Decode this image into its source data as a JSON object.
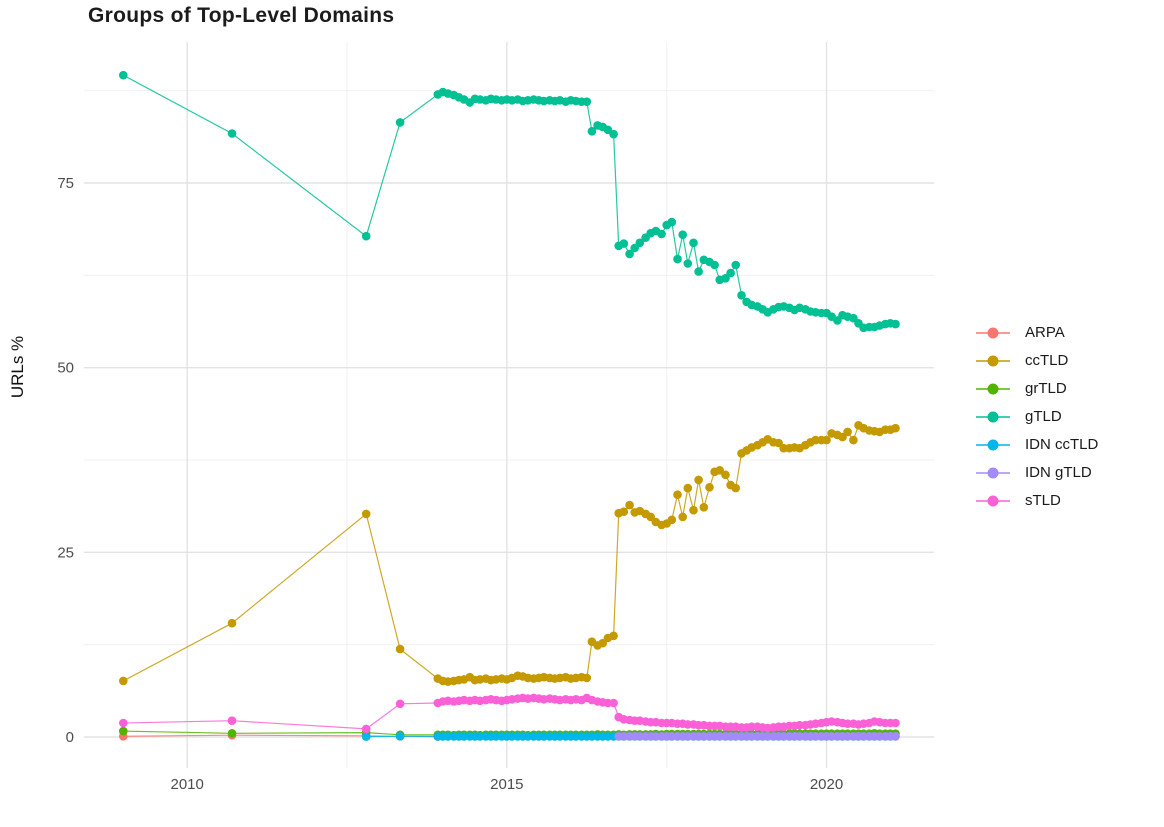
{
  "chart_data": {
    "type": "line-scatter",
    "title": "Groups of Top-Level Domains",
    "xlabel": "",
    "ylabel": "URLs %",
    "legend_position": "right",
    "grid": true,
    "x_ticks": [
      2010,
      2015,
      2020
    ],
    "x_minor": [
      2012.5,
      2017.5
    ],
    "y_ticks": [
      0,
      25,
      50,
      75
    ],
    "y_minor": [
      12.5,
      37.5,
      62.5,
      87.5
    ],
    "xlim": [
      2008.4,
      2021.7
    ],
    "ylim": [
      -4.6,
      94.2
    ],
    "x_dense": [
      2013.92,
      2014.0,
      2014.08,
      2014.17,
      2014.25,
      2014.33,
      2014.42,
      2014.5,
      2014.58,
      2014.67,
      2014.75,
      2014.83,
      2014.92,
      2015.0,
      2015.08,
      2015.17,
      2015.25,
      2015.33,
      2015.42,
      2015.5,
      2015.58,
      2015.67,
      2015.75,
      2015.83,
      2015.92,
      2016.0,
      2016.08,
      2016.17,
      2016.25,
      2016.33,
      2016.42,
      2016.5,
      2016.58,
      2016.67,
      2016.75,
      2016.83,
      2016.92,
      2017.0,
      2017.08,
      2017.17,
      2017.25,
      2017.33,
      2017.42,
      2017.5,
      2017.58,
      2017.67,
      2017.75,
      2017.83,
      2017.92,
      2018.0,
      2018.08,
      2018.17,
      2018.25,
      2018.33,
      2018.42,
      2018.5,
      2018.58,
      2018.67,
      2018.75,
      2018.83,
      2018.92,
      2019.0,
      2019.08,
      2019.17,
      2019.25,
      2019.33,
      2019.42,
      2019.5,
      2019.58,
      2019.67,
      2019.75,
      2019.83,
      2019.92,
      2020.0,
      2020.08,
      2020.17,
      2020.25,
      2020.33,
      2020.42,
      2020.5,
      2020.58,
      2020.67,
      2020.75,
      2020.83,
      2020.92,
      2021.0,
      2021.08
    ],
    "series": [
      {
        "name": "ARPA",
        "color": "#F8766D",
        "x_pre": [
          2009.0,
          2010.7,
          2012.8,
          2013.33,
          2013.92
        ],
        "y_pre": [
          0.1,
          0.25,
          0.15,
          0.1,
          0.05
        ],
        "dense_from": null,
        "y_dense": []
      },
      {
        "name": "ccTLD",
        "color": "#C49A00",
        "x_pre": [
          2009.0,
          2010.7,
          2012.8,
          2013.33
        ],
        "y_pre": [
          7.6,
          15.4,
          30.2,
          11.9
        ],
        "dense_from": 0,
        "y_dense": [
          7.9,
          7.6,
          7.5,
          7.6,
          7.7,
          7.8,
          8.1,
          7.7,
          7.8,
          7.9,
          7.7,
          7.8,
          7.9,
          7.8,
          8.0,
          8.3,
          8.2,
          8.0,
          7.9,
          8.0,
          8.1,
          8.0,
          7.9,
          8.0,
          8.1,
          7.9,
          8.0,
          8.1,
          8.0,
          12.9,
          12.4,
          12.7,
          13.4,
          13.7,
          30.3,
          30.5,
          31.4,
          30.4,
          30.6,
          30.2,
          29.8,
          29.1,
          28.7,
          28.9,
          29.4,
          32.8,
          29.8,
          33.7,
          30.7,
          34.8,
          31.1,
          33.8,
          35.9,
          36.1,
          35.5,
          34.1,
          33.7,
          38.4,
          38.8,
          39.2,
          39.5,
          39.9,
          40.3,
          39.9,
          39.8,
          39.1,
          39.1,
          39.2,
          39.1,
          39.5,
          39.9,
          40.2,
          40.2,
          40.2,
          41.1,
          40.9,
          40.6,
          41.3,
          40.2,
          42.2,
          41.8,
          41.5,
          41.4,
          41.3,
          41.6,
          41.6,
          41.8
        ]
      },
      {
        "name": "grTLD",
        "color": "#53B400",
        "x_pre": [
          2009.0,
          2010.7,
          2012.8,
          2013.33
        ],
        "y_pre": [
          0.8,
          0.5,
          0.6,
          0.3
        ],
        "dense_from": 0,
        "y_dense": [
          0.3,
          0.3,
          0.3,
          0.25,
          0.3,
          0.3,
          0.3,
          0.3,
          0.25,
          0.3,
          0.3,
          0.3,
          0.3,
          0.3,
          0.3,
          0.3,
          0.3,
          0.25,
          0.3,
          0.3,
          0.3,
          0.3,
          0.3,
          0.3,
          0.3,
          0.3,
          0.3,
          0.3,
          0.3,
          0.3,
          0.35,
          0.3,
          0.3,
          0.3,
          0.35,
          0.3,
          0.35,
          0.35,
          0.35,
          0.35,
          0.35,
          0.4,
          0.35,
          0.4,
          0.4,
          0.4,
          0.4,
          0.4,
          0.4,
          0.4,
          0.4,
          0.4,
          0.4,
          0.4,
          0.4,
          0.4,
          0.4,
          0.4,
          0.4,
          0.4,
          0.4,
          0.4,
          0.4,
          0.4,
          0.45,
          0.4,
          0.45,
          0.45,
          0.45,
          0.45,
          0.45,
          0.45,
          0.45,
          0.45,
          0.45,
          0.45,
          0.45,
          0.45,
          0.45,
          0.45,
          0.45,
          0.45,
          0.5,
          0.45,
          0.45,
          0.45,
          0.45
        ]
      },
      {
        "name": "gTLD",
        "color": "#00C094",
        "x_pre": [
          2009.0,
          2010.7,
          2012.8,
          2013.33
        ],
        "y_pre": [
          89.6,
          81.7,
          67.8,
          83.2
        ],
        "dense_from": 0,
        "y_dense": [
          87.0,
          87.3,
          87.1,
          86.9,
          86.6,
          86.3,
          85.9,
          86.4,
          86.3,
          86.2,
          86.4,
          86.3,
          86.2,
          86.3,
          86.2,
          86.3,
          86.1,
          86.2,
          86.3,
          86.2,
          86.1,
          86.2,
          86.1,
          86.2,
          86.0,
          86.2,
          86.1,
          86.0,
          86.0,
          82.0,
          82.8,
          82.6,
          82.2,
          81.6,
          66.5,
          66.8,
          65.4,
          66.2,
          66.9,
          67.6,
          68.2,
          68.5,
          68.1,
          69.3,
          69.7,
          64.7,
          68.0,
          64.1,
          66.9,
          63.0,
          64.6,
          64.3,
          63.9,
          61.9,
          62.1,
          62.8,
          63.9,
          59.8,
          58.9,
          58.5,
          58.3,
          57.9,
          57.5,
          57.9,
          58.2,
          58.3,
          58.1,
          57.8,
          58.1,
          57.9,
          57.6,
          57.5,
          57.4,
          57.4,
          56.9,
          56.4,
          57.1,
          56.9,
          56.7,
          56.0,
          55.4,
          55.5,
          55.5,
          55.7,
          55.9,
          56.0,
          55.9
        ]
      },
      {
        "name": "IDN ccTLD",
        "color": "#00B6EB",
        "x_pre": [
          2012.8,
          2013.33
        ],
        "y_pre": [
          0.05,
          0.1
        ],
        "dense_from": 0,
        "y_dense": [
          0.08,
          0.08,
          0.08,
          0.08,
          0.08,
          0.08,
          0.08,
          0.08,
          0.08,
          0.08,
          0.08,
          0.08,
          0.08,
          0.08,
          0.08,
          0.08,
          0.08,
          0.08,
          0.08,
          0.08,
          0.08,
          0.08,
          0.08,
          0.08,
          0.08,
          0.08,
          0.08,
          0.08,
          0.08,
          0.08,
          0.08,
          0.08,
          0.08,
          0.08,
          0.08,
          0.08,
          0.08,
          0.08,
          0.08,
          0.08,
          0.08,
          0.08,
          0.08,
          0.08,
          0.08,
          0.08,
          0.08,
          0.08,
          0.08,
          0.08,
          0.08,
          0.08,
          0.08,
          0.08,
          0.08,
          0.08,
          0.08,
          0.08,
          0.08,
          0.08,
          0.08,
          0.08,
          0.08,
          0.08,
          0.08,
          0.08,
          0.08,
          0.08,
          0.08,
          0.08,
          0.08,
          0.08,
          0.08,
          0.08,
          0.08,
          0.08,
          0.08,
          0.08,
          0.08,
          0.08,
          0.08,
          0.08,
          0.08,
          0.08,
          0.08,
          0.08,
          0.08
        ]
      },
      {
        "name": "IDN gTLD",
        "color": "#A58AFF",
        "x_pre": [],
        "y_pre": [],
        "dense_from": 34,
        "y_dense": [
          0.1,
          0.1,
          0.1,
          0.1,
          0.1,
          0.1,
          0.1,
          0.1,
          0.1,
          0.1,
          0.1,
          0.1,
          0.1,
          0.1,
          0.1,
          0.1,
          0.1,
          0.1,
          0.1,
          0.1,
          0.1,
          0.1,
          0.1,
          0.1,
          0.1,
          0.1,
          0.1,
          0.1,
          0.1,
          0.1,
          0.1,
          0.1,
          0.1,
          0.1,
          0.1,
          0.1,
          0.1,
          0.1,
          0.1,
          0.1,
          0.1,
          0.1,
          0.1,
          0.1,
          0.1,
          0.1,
          0.1,
          0.1,
          0.1,
          0.1,
          0.1,
          0.1,
          0.1
        ]
      },
      {
        "name": "sTLD",
        "color": "#FB61D7",
        "x_pre": [
          2009.0,
          2010.7,
          2012.8,
          2013.33
        ],
        "y_pre": [
          1.9,
          2.2,
          1.1,
          4.5
        ],
        "dense_from": 0,
        "y_dense": [
          4.6,
          4.8,
          4.9,
          4.8,
          4.9,
          5.0,
          4.9,
          5.0,
          4.9,
          5.0,
          5.1,
          5.0,
          4.9,
          5.0,
          5.1,
          5.2,
          5.3,
          5.2,
          5.3,
          5.2,
          5.1,
          5.2,
          5.1,
          5.0,
          5.1,
          5.0,
          5.1,
          5.0,
          5.3,
          5.0,
          4.8,
          4.7,
          4.6,
          4.6,
          2.7,
          2.4,
          2.3,
          2.2,
          2.2,
          2.1,
          2.0,
          2.0,
          1.9,
          1.9,
          1.9,
          1.8,
          1.8,
          1.7,
          1.7,
          1.6,
          1.6,
          1.5,
          1.5,
          1.5,
          1.4,
          1.4,
          1.4,
          1.3,
          1.3,
          1.4,
          1.4,
          1.3,
          1.2,
          1.3,
          1.4,
          1.4,
          1.5,
          1.5,
          1.6,
          1.6,
          1.7,
          1.8,
          1.9,
          2.0,
          2.1,
          2.0,
          1.9,
          1.8,
          1.8,
          1.7,
          1.8,
          1.9,
          2.1,
          2.0,
          1.9,
          1.9,
          1.9
        ]
      }
    ]
  }
}
